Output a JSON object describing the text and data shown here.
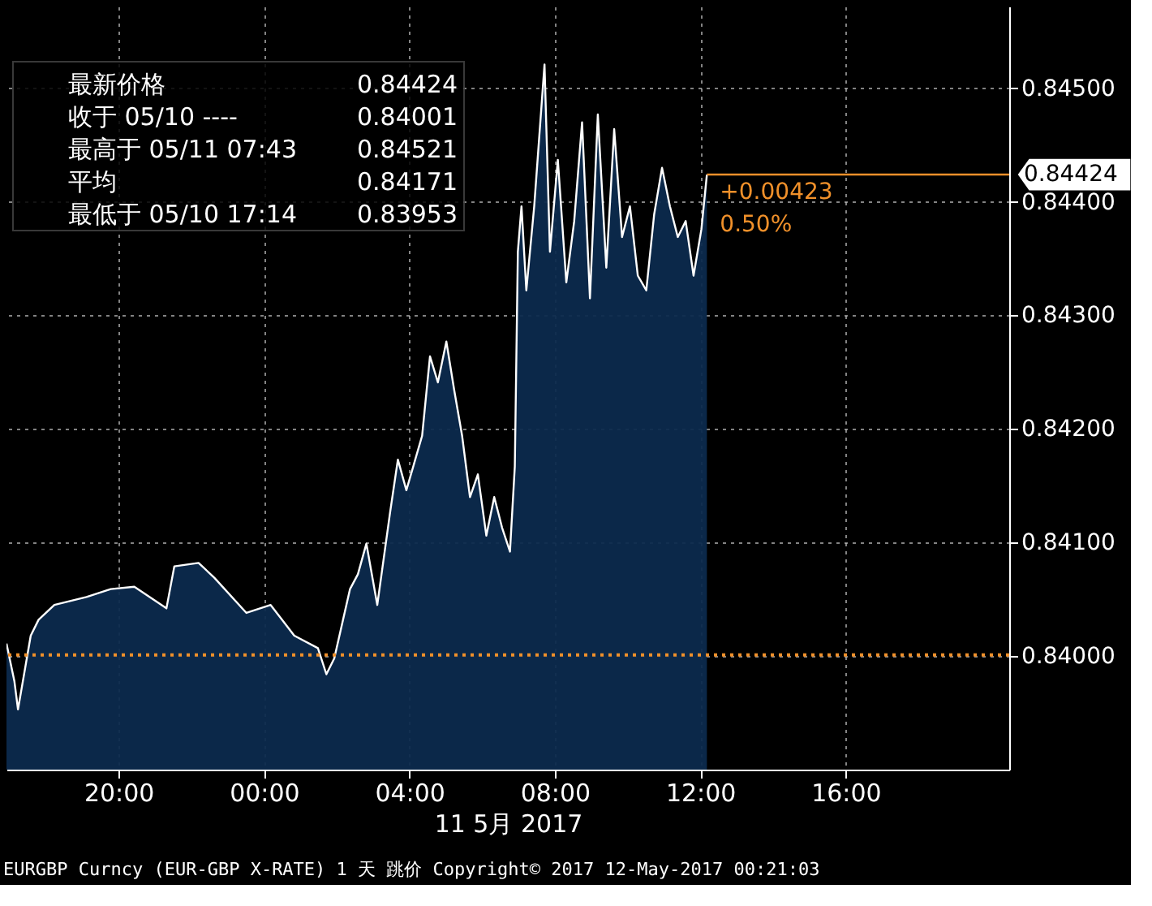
{
  "chart_data": {
    "type": "area",
    "xlabel": "11 5月 2017",
    "x": [
      "2017-05-10T16:55",
      "2017-05-10T17:08",
      "2017-05-10T17:14",
      "2017-05-10T17:35",
      "2017-05-10T17:48",
      "2017-05-10T18:14",
      "2017-05-10T19:07",
      "2017-05-10T19:47",
      "2017-05-10T20:26",
      "2017-05-10T21:19",
      "2017-05-10T21:32",
      "2017-05-10T22:12",
      "2017-05-10T22:38",
      "2017-05-10T23:31",
      "2017-05-11T00:11",
      "2017-05-11T00:50",
      "2017-05-11T01:29",
      "2017-05-11T01:43",
      "2017-05-11T01:56",
      "2017-05-11T02:22",
      "2017-05-11T02:35",
      "2017-05-11T02:49",
      "2017-05-11T03:07",
      "2017-05-11T03:28",
      "2017-05-11T03:41",
      "2017-05-11T03:55",
      "2017-05-11T04:21",
      "2017-05-11T04:34",
      "2017-05-11T04:47",
      "2017-05-11T05:01",
      "2017-05-11T05:14",
      "2017-05-11T05:27",
      "2017-05-11T05:40",
      "2017-05-11T05:53",
      "2017-05-11T06:07",
      "2017-05-11T06:20",
      "2017-05-11T06:33",
      "2017-05-11T06:46",
      "2017-05-11T06:54",
      "2017-05-11T06:59",
      "2017-05-11T07:05",
      "2017-05-11T07:13",
      "2017-05-11T07:26",
      "2017-05-11T07:43",
      "2017-05-11T07:52",
      "2017-05-11T08:05",
      "2017-05-11T08:19",
      "2017-05-11T08:32",
      "2017-05-11T08:45",
      "2017-05-11T08:58",
      "2017-05-11T09:11",
      "2017-05-11T09:25",
      "2017-05-11T09:38",
      "2017-05-11T09:51",
      "2017-05-11T10:04",
      "2017-05-11T10:17",
      "2017-05-11T10:31",
      "2017-05-11T10:44",
      "2017-05-11T10:57",
      "2017-05-11T11:10",
      "2017-05-11T11:23",
      "2017-05-11T11:36",
      "2017-05-11T11:49",
      "2017-05-11T12:02",
      "2017-05-11T12:11"
    ],
    "series": [
      {
        "color": "#ffffff",
        "values": [
          0.84011,
          0.83978,
          0.83953,
          0.84018,
          0.84032,
          0.84045,
          0.84052,
          0.84059,
          0.84061,
          0.84042,
          0.84079,
          0.84082,
          0.84069,
          0.84038,
          0.84045,
          0.84018,
          0.84007,
          0.83984,
          0.83998,
          0.84059,
          0.84072,
          0.84099,
          0.84045,
          0.84126,
          0.84173,
          0.84146,
          0.84194,
          0.84264,
          0.84241,
          0.84277,
          0.84234,
          0.84194,
          0.8414,
          0.8416,
          0.84106,
          0.8414,
          0.84113,
          0.84092,
          0.84167,
          0.84356,
          0.84396,
          0.84322,
          0.84396,
          0.84521,
          0.84356,
          0.84437,
          0.84329,
          0.84383,
          0.8447,
          0.84315,
          0.84477,
          0.84342,
          0.84464,
          0.84369,
          0.84396,
          0.84335,
          0.84322,
          0.84389,
          0.8443,
          0.84396,
          0.84369,
          0.84383,
          0.84335,
          0.84376,
          0.84424
        ]
      }
    ],
    "xlim": [
      "2017-05-10T16:55",
      "2017-05-11T20:30"
    ],
    "xticks": [
      {
        "value": "2017-05-10T20:00",
        "label": "20:00"
      },
      {
        "value": "2017-05-11T00:00",
        "label": "00:00"
      },
      {
        "value": "2017-05-11T04:00",
        "label": "04:00"
      },
      {
        "value": "2017-05-11T08:00",
        "label": "08:00"
      },
      {
        "value": "2017-05-11T12:00",
        "label": "12:00"
      },
      {
        "value": "2017-05-11T16:00",
        "label": "16:00"
      }
    ],
    "ylim": [
      0.839,
      0.84572
    ],
    "yticks": [
      {
        "value": 0.84,
        "label": "0.84000"
      },
      {
        "value": 0.841,
        "label": "0.84100"
      },
      {
        "value": 0.842,
        "label": "0.84200"
      },
      {
        "value": 0.843,
        "label": "0.84300"
      },
      {
        "value": 0.844,
        "label": "0.84400"
      },
      {
        "value": 0.845,
        "label": "0.84500"
      }
    ],
    "grid": true,
    "ref_lines": [
      {
        "axis": "y",
        "value": 0.84001,
        "color": "#f0902a",
        "line_style": "dotted"
      }
    ],
    "annotations": [
      "最新价格 0.84424",
      "收于 05/10 ---- 0.84001",
      "最高于 05/11 07:43 0.84521",
      "平均 0.84171",
      "最低于 05/10 17:14 0.83953",
      {
        "text": "+0.00423",
        "x": "2017-05-11T12:11",
        "y": 0.84424
      },
      {
        "text": "0.50%",
        "x": "2017-05-11T12:11",
        "y": 0.84424
      },
      "0.84424",
      "EURGBP Curncy (EUR-GBP X-RATE) 1 天  跳价 Copyright© 2017 12-May-2017 00:21:03"
    ]
  }
}
